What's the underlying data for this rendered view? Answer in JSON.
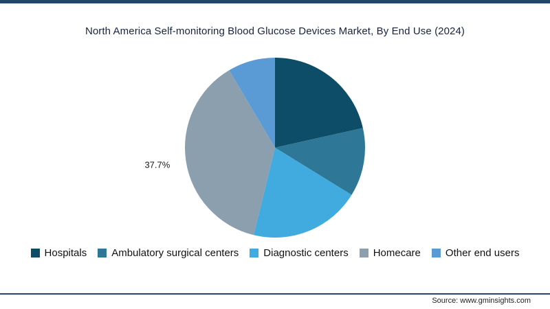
{
  "page": {
    "source": "Source: www.gminsights.com",
    "accent_color": "#24466b"
  },
  "chart_data": {
    "type": "pie",
    "title": "North America Self-monitoring Blood Glucose Devices Market, By End Use (2024)",
    "legend_position": "bottom",
    "start_angle_deg": 0,
    "direction": "clockwise",
    "slices": [
      {
        "name": "Hospitals",
        "value": 21.5,
        "color": "#0d4d68"
      },
      {
        "name": "Ambulatory surgical centers",
        "value": 12.3,
        "color": "#2e7796"
      },
      {
        "name": "Diagnostic centers",
        "value": 20.0,
        "color": "#41aade"
      },
      {
        "name": "Homecare",
        "value": 37.7,
        "color": "#8c9fae",
        "label": "37.7%"
      },
      {
        "name": "Other end users",
        "value": 8.5,
        "color": "#5b9bd5"
      }
    ]
  }
}
